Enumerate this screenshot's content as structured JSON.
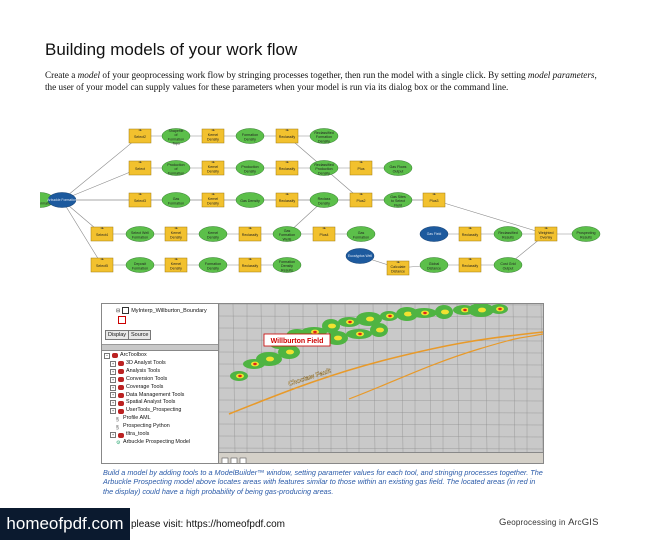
{
  "page": {
    "title": "Building models of your work flow",
    "intro": {
      "p1": "Create a ",
      "p1_em": "model",
      "p2": " of your geoprocessing work flow by stringing processes together, then run the model with a single click. By setting ",
      "p2_em": "model parameters",
      "p3": ", the user of your model can supply values for these parameters when your model is run via its dialog box or the command line."
    },
    "caption": "Build a model by adding tools to a ModelBuilder™ window, setting parameter values for each tool, and stringing processes together. The Arbuckle Prospecting model above locates areas with features similar to those within an existing gas field. The located areas (in red in the display) could have a high probability of being gas-producing areas.",
    "watermark": {
      "badge": "homeofpdf.com",
      "text": "please visit: https://homeofpdf.com"
    },
    "running_head": {
      "g": "G",
      "rest1": "eoprocessing in ",
      "a": "A",
      "rest2": "rc",
      "gis": "GIS"
    }
  },
  "colors": {
    "tool_fill": "#f2c12e",
    "data_fill": "#5cbf4a",
    "input_fill": "#1d5a9e",
    "connector": "#8a8a8a",
    "caption_blue": "#2a5aa8"
  },
  "diagram": {
    "rows": [
      {
        "nodes": [
          "tool:Select2",
          "data:Shapefile of Formation Tops",
          "tool:Kernel Density",
          "data:Formation Density",
          "tool:Reclassify",
          "data:Reclassified Formation Density"
        ]
      },
      {
        "nodes": [
          "tool:Select",
          "data:Production of Formation",
          "tool:Kernel Density",
          "data:Production Density",
          "tool:Reclassify",
          "data:Reclassified Production Density",
          "tool:Plus",
          "data:Gas Flows Output"
        ]
      },
      {
        "nodes": [
          "tool:Select3",
          "data:Gas Formation",
          "tool:Kernel Density",
          "data:Gas Density",
          "tool:Reclassify",
          "data:Reclass Density",
          "tool:Plus2",
          "data:Gas Sites to Select Field",
          "tool:Plus3",
          "data:Gas All Formations"
        ]
      },
      {
        "nodes": [
          "tool:Select4",
          "data:Select Well Formation",
          "tool:Kernel Density",
          "data:Kernel Density",
          "tool:Reclassify",
          "data:Gas Formation Wells",
          "tool:Plus4",
          "data:Gas Formation"
        ]
      },
      {
        "nodes": [
          "tool:Select5",
          "data:Deposit Formation",
          "tool:Kernel Density",
          "data:Formation Density",
          "tool:Reclassify",
          "data:Formation Density Results"
        ]
      }
    ],
    "inputs": [
      "Arbuckle Formation",
      "Gas Field",
      "Eucalyptus Well"
    ],
    "tail": [
      "tool:Reclassify",
      "data:Reclassified Results",
      "tool:Weighted Overlay",
      "data:Prospecting Results"
    ]
  },
  "arcmap": {
    "toc": {
      "layer": "MyInterp_Willburton_Boundary"
    },
    "tabs": [
      "Display",
      "Source"
    ],
    "toolbox": [
      {
        "label": "ArcToolbox",
        "level": 0,
        "icon": "toolbox-icon"
      },
      {
        "label": "3D Analyst Tools",
        "level": 1,
        "icon": "toolbox-icon"
      },
      {
        "label": "Analysis Tools",
        "level": 1,
        "icon": "toolbox-icon"
      },
      {
        "label": "Conversion Tools",
        "level": 1,
        "icon": "toolbox-icon"
      },
      {
        "label": "Coverage Tools",
        "level": 1,
        "icon": "toolbox-icon"
      },
      {
        "label": "Data Management Tools",
        "level": 1,
        "icon": "toolbox-icon"
      },
      {
        "label": "Spatial Analyst Tools",
        "level": 1,
        "icon": "toolbox-icon"
      },
      {
        "label": "UserTools_Prospecting",
        "level": 1,
        "icon": "toolbox-icon"
      },
      {
        "label": "Profile AML",
        "level": 2,
        "icon": "script-icon"
      },
      {
        "label": "Prospecting Python",
        "level": 2,
        "icon": "script-icon"
      },
      {
        "label": "tltra_tools",
        "level": 1,
        "icon": "toolbox-icon"
      },
      {
        "label": "Arbuckle Prospecting Model",
        "level": 2,
        "icon": "model-icon"
      }
    ],
    "map_labels": {
      "field": "Willburton Field",
      "fault": "Choctaw Fault"
    }
  }
}
